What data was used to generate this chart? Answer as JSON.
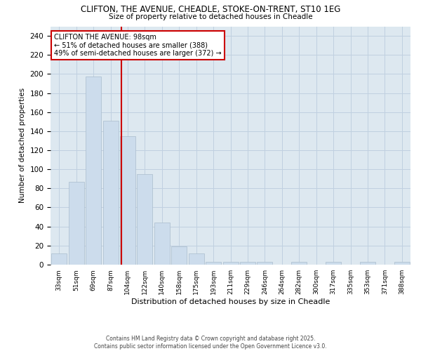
{
  "title_line1": "CLIFTON, THE AVENUE, CHEADLE, STOKE-ON-TRENT, ST10 1EG",
  "title_line2": "Size of property relative to detached houses in Cheadle",
  "xlabel": "Distribution of detached houses by size in Cheadle",
  "ylabel": "Number of detached properties",
  "categories": [
    "33sqm",
    "51sqm",
    "69sqm",
    "87sqm",
    "104sqm",
    "122sqm",
    "140sqm",
    "158sqm",
    "175sqm",
    "193sqm",
    "211sqm",
    "229sqm",
    "246sqm",
    "264sqm",
    "282sqm",
    "300sqm",
    "317sqm",
    "335sqm",
    "353sqm",
    "371sqm",
    "388sqm"
  ],
  "values": [
    12,
    87,
    197,
    151,
    135,
    95,
    44,
    19,
    12,
    3,
    3,
    3,
    3,
    0,
    3,
    0,
    3,
    0,
    3,
    0,
    3
  ],
  "bar_color": "#ccdcec",
  "bar_edge_color": "#aabccc",
  "bar_linewidth": 0.5,
  "redline_color": "#cc0000",
  "annotation_text": "CLIFTON THE AVENUE: 98sqm\n← 51% of detached houses are smaller (388)\n49% of semi-detached houses are larger (372) →",
  "annotation_box_color": "#ffffff",
  "annotation_box_edge": "#cc0000",
  "annotation_fontsize": 7.0,
  "ylim": [
    0,
    250
  ],
  "yticks": [
    0,
    20,
    40,
    60,
    80,
    100,
    120,
    140,
    160,
    180,
    200,
    220,
    240
  ],
  "grid_color": "#c0d0e0",
  "background_color": "#dde8f0",
  "footnote": "Contains HM Land Registry data © Crown copyright and database right 2025.\nContains public sector information licensed under the Open Government Licence v3.0."
}
